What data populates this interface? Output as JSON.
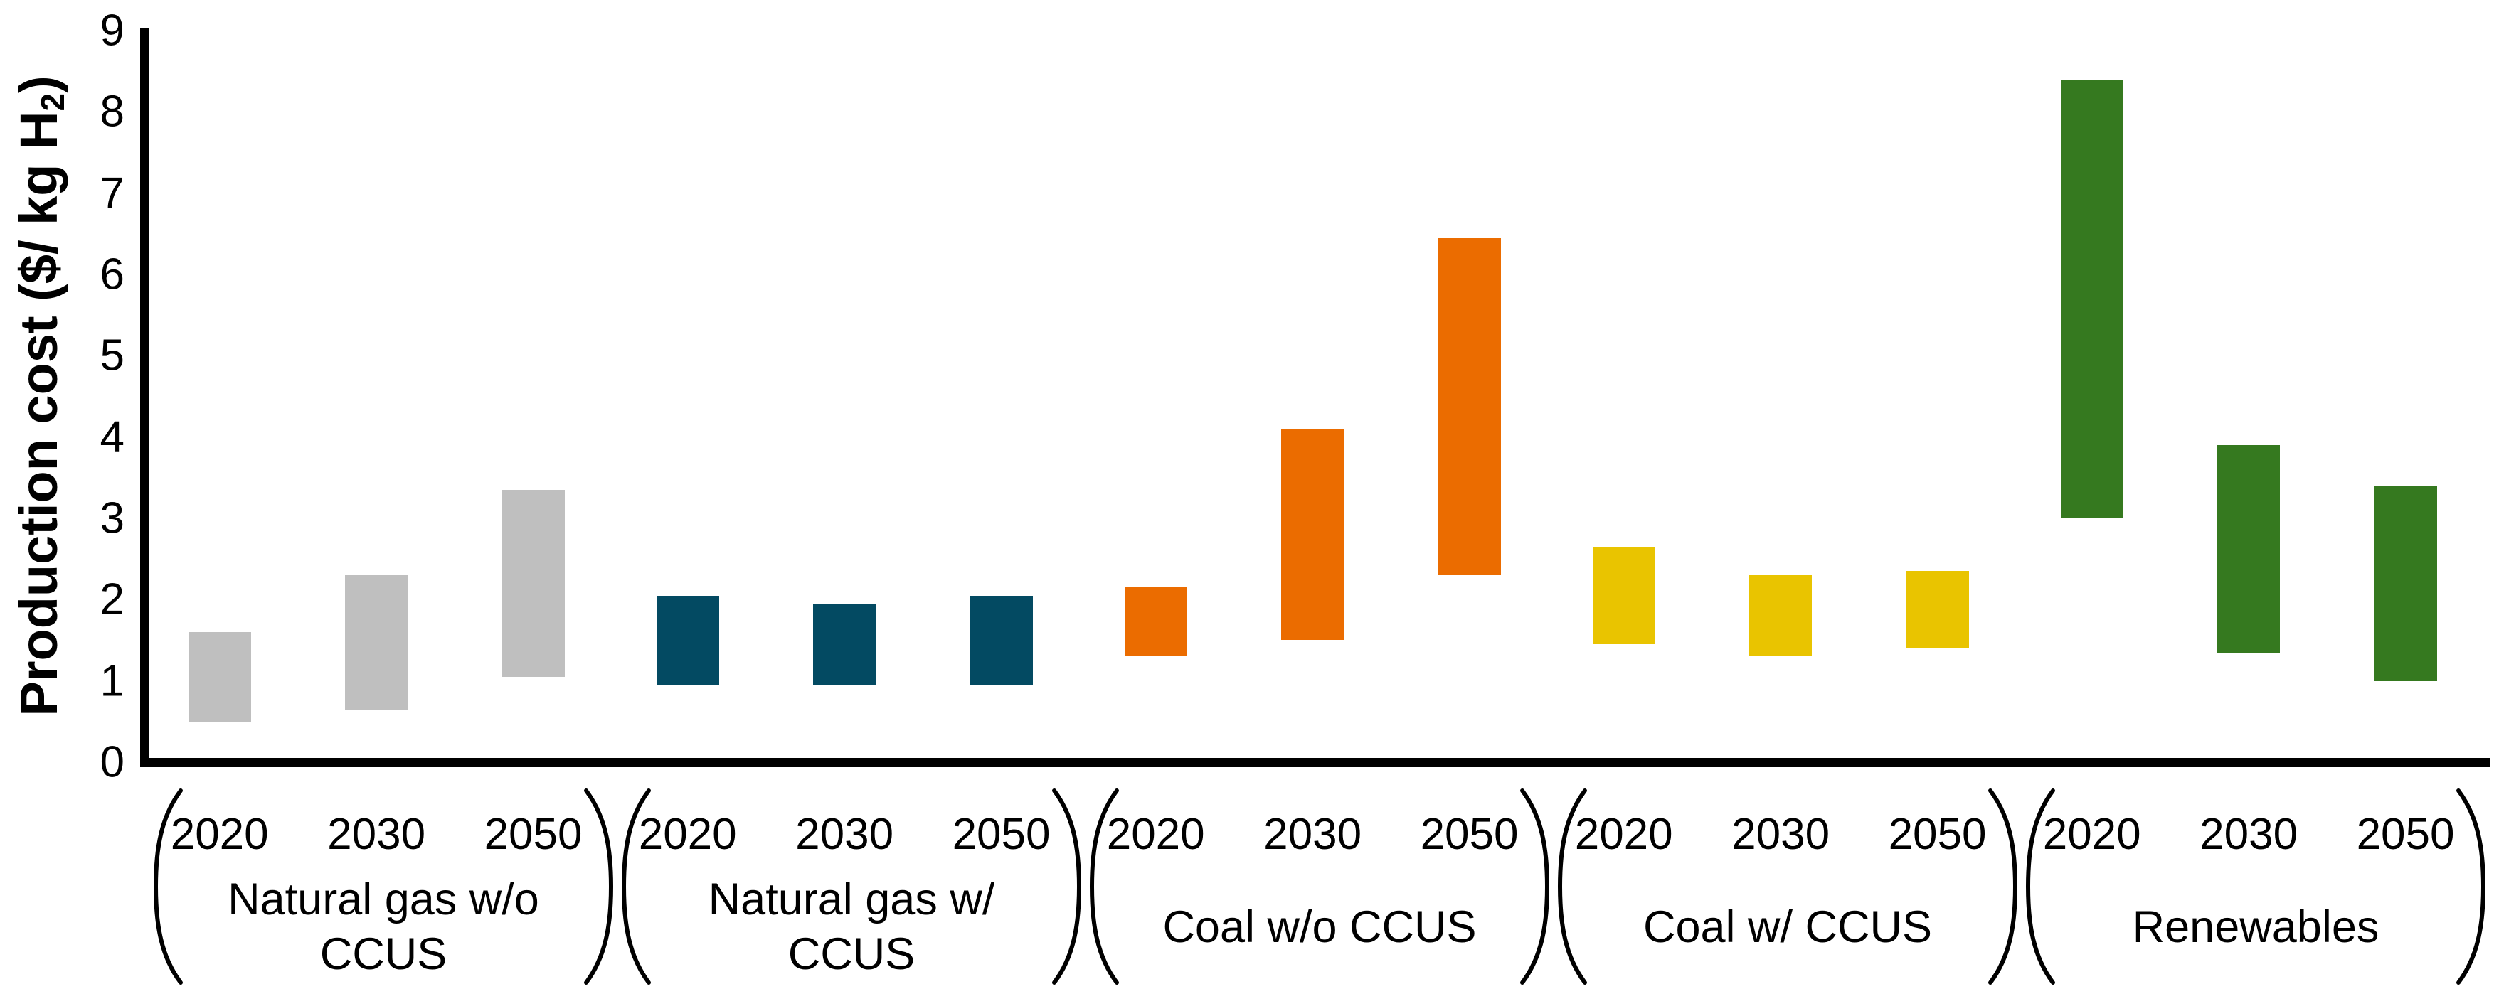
{
  "y_axis": {
    "title_prefix": "Production cost ($/ kg H",
    "title_subscript": "2",
    "title_suffix": ")",
    "tick_labels": [
      "0",
      "1",
      "2",
      "3",
      "4",
      "5",
      "6",
      "7",
      "8",
      "9"
    ]
  },
  "chart_data": {
    "type": "bar",
    "subtype": "floating-range-bars",
    "title": "",
    "xlabel": "",
    "ylabel": "Production cost ($/ kg H2)",
    "ylim": [
      0,
      9
    ],
    "grid": false,
    "legend": "none",
    "years": [
      "2020",
      "2030",
      "2050"
    ],
    "groups": [
      {
        "label": "Natural gas w/o CCUS",
        "label_lines": [
          "Natural gas w/o",
          "CCUS"
        ],
        "color": "#BFBFBF",
        "bars": [
          {
            "year": "2020",
            "low": 0.5,
            "high": 1.6
          },
          {
            "year": "2030",
            "low": 0.65,
            "high": 2.3
          },
          {
            "year": "2050",
            "low": 1.05,
            "high": 3.35
          }
        ]
      },
      {
        "label": "Natural gas w/ CCUS",
        "label_lines": [
          "Natural gas w/",
          "CCUS"
        ],
        "color": "#034A62",
        "bars": [
          {
            "year": "2020",
            "low": 0.95,
            "high": 2.05
          },
          {
            "year": "2030",
            "low": 0.95,
            "high": 1.95
          },
          {
            "year": "2050",
            "low": 0.95,
            "high": 2.05
          }
        ]
      },
      {
        "label": "Coal w/o CCUS",
        "label_lines": [
          "Coal w/o CCUS"
        ],
        "color": "#EB6C00",
        "bars": [
          {
            "year": "2020",
            "low": 1.3,
            "high": 2.15
          },
          {
            "year": "2030",
            "low": 1.5,
            "high": 4.1
          },
          {
            "year": "2050",
            "low": 2.3,
            "high": 6.45
          }
        ]
      },
      {
        "label": "Coal w/ CCUS",
        "label_lines": [
          "Coal w/ CCUS"
        ],
        "color": "#E9C400",
        "bars": [
          {
            "year": "2020",
            "low": 1.45,
            "high": 2.65
          },
          {
            "year": "2030",
            "low": 1.3,
            "high": 2.3
          },
          {
            "year": "2050",
            "low": 1.4,
            "high": 2.35
          }
        ]
      },
      {
        "label": "Renewables",
        "label_lines": [
          "Renewables"
        ],
        "color": "#35791F",
        "bars": [
          {
            "year": "2020",
            "low": 3.0,
            "high": 8.4
          },
          {
            "year": "2030",
            "low": 1.35,
            "high": 3.9
          },
          {
            "year": "2050",
            "low": 1.0,
            "high": 3.4
          }
        ]
      }
    ]
  }
}
